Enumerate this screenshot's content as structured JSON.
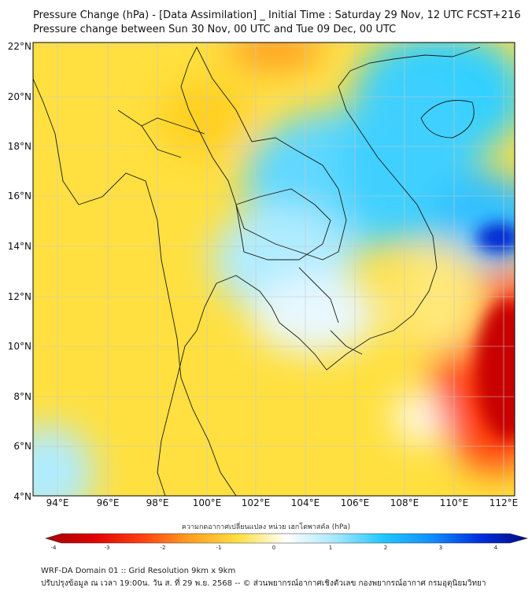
{
  "title_line1": "Pressure Change (hPa) - [Data Assimilation] _ Initial Time : Saturday 29 Nov, 12 UTC FCST+216",
  "title_line2": "Pressure change between Sun 30 Nov, 00 UTC and Tue 09 Dec, 00 UTC",
  "lat_labels": [
    "22°N",
    "20°N",
    "18°N",
    "16°N",
    "14°N",
    "12°N",
    "10°N",
    "8°N",
    "6°N",
    "4°N"
  ],
  "lon_labels": [
    "94°E",
    "96°E",
    "98°E",
    "100°E",
    "102°E",
    "104°E",
    "106°E",
    "108°E",
    "110°E",
    "112°E"
  ],
  "colorbar_label": "ความกดอากาศเปลี่ยนแปลง หน่วย เฮกโตพาสคัล (hPa)",
  "colorbar_ticks": [
    "-4",
    "-3",
    "-2",
    "-1",
    "0",
    "1",
    "2",
    "3",
    "4"
  ],
  "colorbar_range": [
    -4,
    4
  ],
  "footer_line1": "WRF-DA Domain 01 :: Grid Resolution 9km x 9km",
  "footer_line2": "ปรับปรุงข้อมูล ณ เวลา 19:00น. วัน ส. ที่ 29 พ.ย. 2568 -- © ส่วนพยากรณ์อากาศเชิงตัวเลข กองพยากรณ์อากาศ กรมอุตุนิยมวิทยา",
  "colors": {
    "strong_negative": "#a50000",
    "negative": "#ff3000",
    "slight_negative": "#ffd020",
    "near_zero": "#ffffff",
    "slight_positive": "#a8e8ff",
    "positive": "#20c8ff",
    "strong_positive": "#0010c0"
  }
}
